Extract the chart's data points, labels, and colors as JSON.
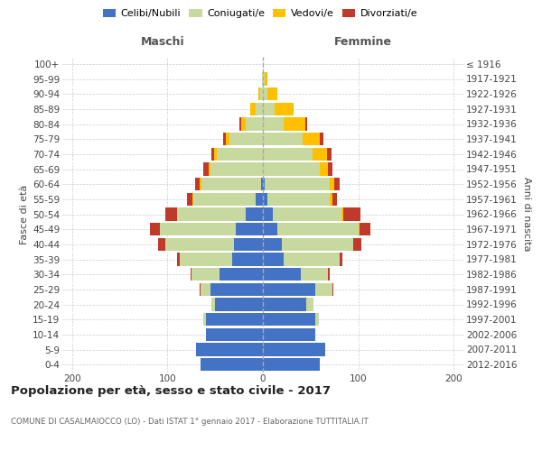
{
  "age_groups": [
    "0-4",
    "5-9",
    "10-14",
    "15-19",
    "20-24",
    "25-29",
    "30-34",
    "35-39",
    "40-44",
    "45-49",
    "50-54",
    "55-59",
    "60-64",
    "65-69",
    "70-74",
    "75-79",
    "80-84",
    "85-89",
    "90-94",
    "95-99",
    "100+"
  ],
  "birth_years": [
    "2012-2016",
    "2007-2011",
    "2002-2006",
    "1997-2001",
    "1992-1996",
    "1987-1991",
    "1982-1986",
    "1977-1981",
    "1972-1976",
    "1967-1971",
    "1962-1966",
    "1957-1961",
    "1952-1956",
    "1947-1951",
    "1942-1946",
    "1937-1941",
    "1932-1936",
    "1927-1931",
    "1922-1926",
    "1917-1921",
    "≤ 1916"
  ],
  "maschi": {
    "celibe": [
      65,
      70,
      60,
      60,
      50,
      55,
      45,
      32,
      30,
      28,
      18,
      8,
      2,
      0,
      0,
      0,
      0,
      0,
      0,
      0,
      0
    ],
    "coniugato": [
      0,
      0,
      0,
      2,
      4,
      10,
      30,
      55,
      72,
      80,
      72,
      65,
      62,
      55,
      48,
      35,
      18,
      8,
      3,
      1,
      0
    ],
    "vedovo": [
      0,
      0,
      0,
      0,
      0,
      0,
      0,
      0,
      0,
      0,
      0,
      1,
      2,
      2,
      3,
      4,
      5,
      5,
      2,
      0,
      0
    ],
    "divorziato": [
      0,
      0,
      0,
      0,
      0,
      1,
      1,
      3,
      8,
      10,
      12,
      5,
      5,
      5,
      3,
      3,
      2,
      0,
      0,
      0,
      0
    ]
  },
  "femmine": {
    "nubile": [
      60,
      65,
      55,
      55,
      45,
      55,
      40,
      22,
      20,
      15,
      10,
      5,
      2,
      0,
      0,
      0,
      0,
      0,
      0,
      0,
      0
    ],
    "coniugata": [
      0,
      0,
      0,
      4,
      8,
      18,
      28,
      58,
      75,
      85,
      72,
      65,
      68,
      60,
      52,
      42,
      22,
      12,
      5,
      2,
      0
    ],
    "vedova": [
      0,
      0,
      0,
      0,
      0,
      0,
      0,
      0,
      0,
      1,
      2,
      3,
      5,
      8,
      15,
      18,
      22,
      20,
      10,
      3,
      0
    ],
    "divorziata": [
      0,
      0,
      0,
      0,
      0,
      1,
      2,
      3,
      8,
      12,
      18,
      5,
      5,
      5,
      5,
      3,
      2,
      0,
      0,
      0,
      0
    ]
  },
  "colors": {
    "celibe": "#4472c4",
    "coniugato": "#c8d9a0",
    "vedovo": "#ffc000",
    "divorziato": "#c0392b"
  },
  "title": "Popolazione per età, sesso e stato civile - 2017",
  "subtitle": "COMUNE DI CASALMAIOCCO (LO) - Dati ISTAT 1° gennaio 2017 - Elaborazione TUTTITALIA.IT",
  "label_maschi": "Maschi",
  "label_femmine": "Femmine",
  "ylabel_left": "Fasce di età",
  "ylabel_right": "Anni di nascita",
  "xlim": 210,
  "xticks": [
    -200,
    -100,
    0,
    100,
    200
  ],
  "legend_labels": [
    "Celibi/Nubili",
    "Coniugati/e",
    "Vedovi/e",
    "Divorziati/e"
  ],
  "background_color": "#ffffff",
  "grid_color": "#cccccc"
}
